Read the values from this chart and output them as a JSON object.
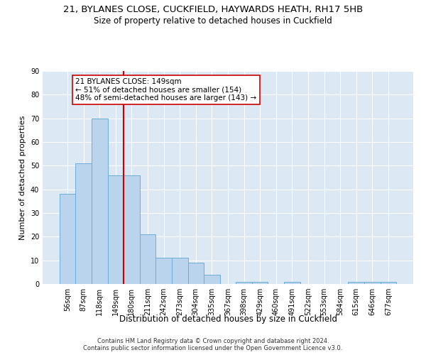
{
  "title1": "21, BYLANES CLOSE, CUCKFIELD, HAYWARDS HEATH, RH17 5HB",
  "title2": "Size of property relative to detached houses in Cuckfield",
  "xlabel": "Distribution of detached houses by size in Cuckfield",
  "ylabel": "Number of detached properties",
  "bar_labels": [
    "56sqm",
    "87sqm",
    "118sqm",
    "149sqm",
    "180sqm",
    "211sqm",
    "242sqm",
    "273sqm",
    "304sqm",
    "335sqm",
    "367sqm",
    "398sqm",
    "429sqm",
    "460sqm",
    "491sqm",
    "522sqm",
    "553sqm",
    "584sqm",
    "615sqm",
    "646sqm",
    "677sqm"
  ],
  "bar_values": [
    38,
    51,
    70,
    46,
    46,
    21,
    11,
    11,
    9,
    4,
    0,
    1,
    1,
    0,
    1,
    0,
    0,
    0,
    1,
    1,
    1
  ],
  "bar_color": "#bad4ed",
  "bar_edge_color": "#6baed6",
  "vline_color": "#cc0000",
  "annotation_line1": "21 BYLANES CLOSE: 149sqm",
  "annotation_line2": "← 51% of detached houses are smaller (154)",
  "annotation_line3": "48% of semi-detached houses are larger (143) →",
  "annotation_box_color": "#ffffff",
  "annotation_box_edge": "#cc0000",
  "ylim": [
    0,
    90
  ],
  "yticks": [
    0,
    10,
    20,
    30,
    40,
    50,
    60,
    70,
    80,
    90
  ],
  "bg_color": "#dce9f5",
  "grid_color": "#ffffff",
  "footer": "Contains HM Land Registry data © Crown copyright and database right 2024.\nContains public sector information licensed under the Open Government Licence v3.0.",
  "title1_fontsize": 9.5,
  "title2_fontsize": 8.5,
  "tick_fontsize": 7,
  "ylabel_fontsize": 8,
  "xlabel_fontsize": 8.5,
  "annotation_fontsize": 7.5,
  "footer_fontsize": 6
}
